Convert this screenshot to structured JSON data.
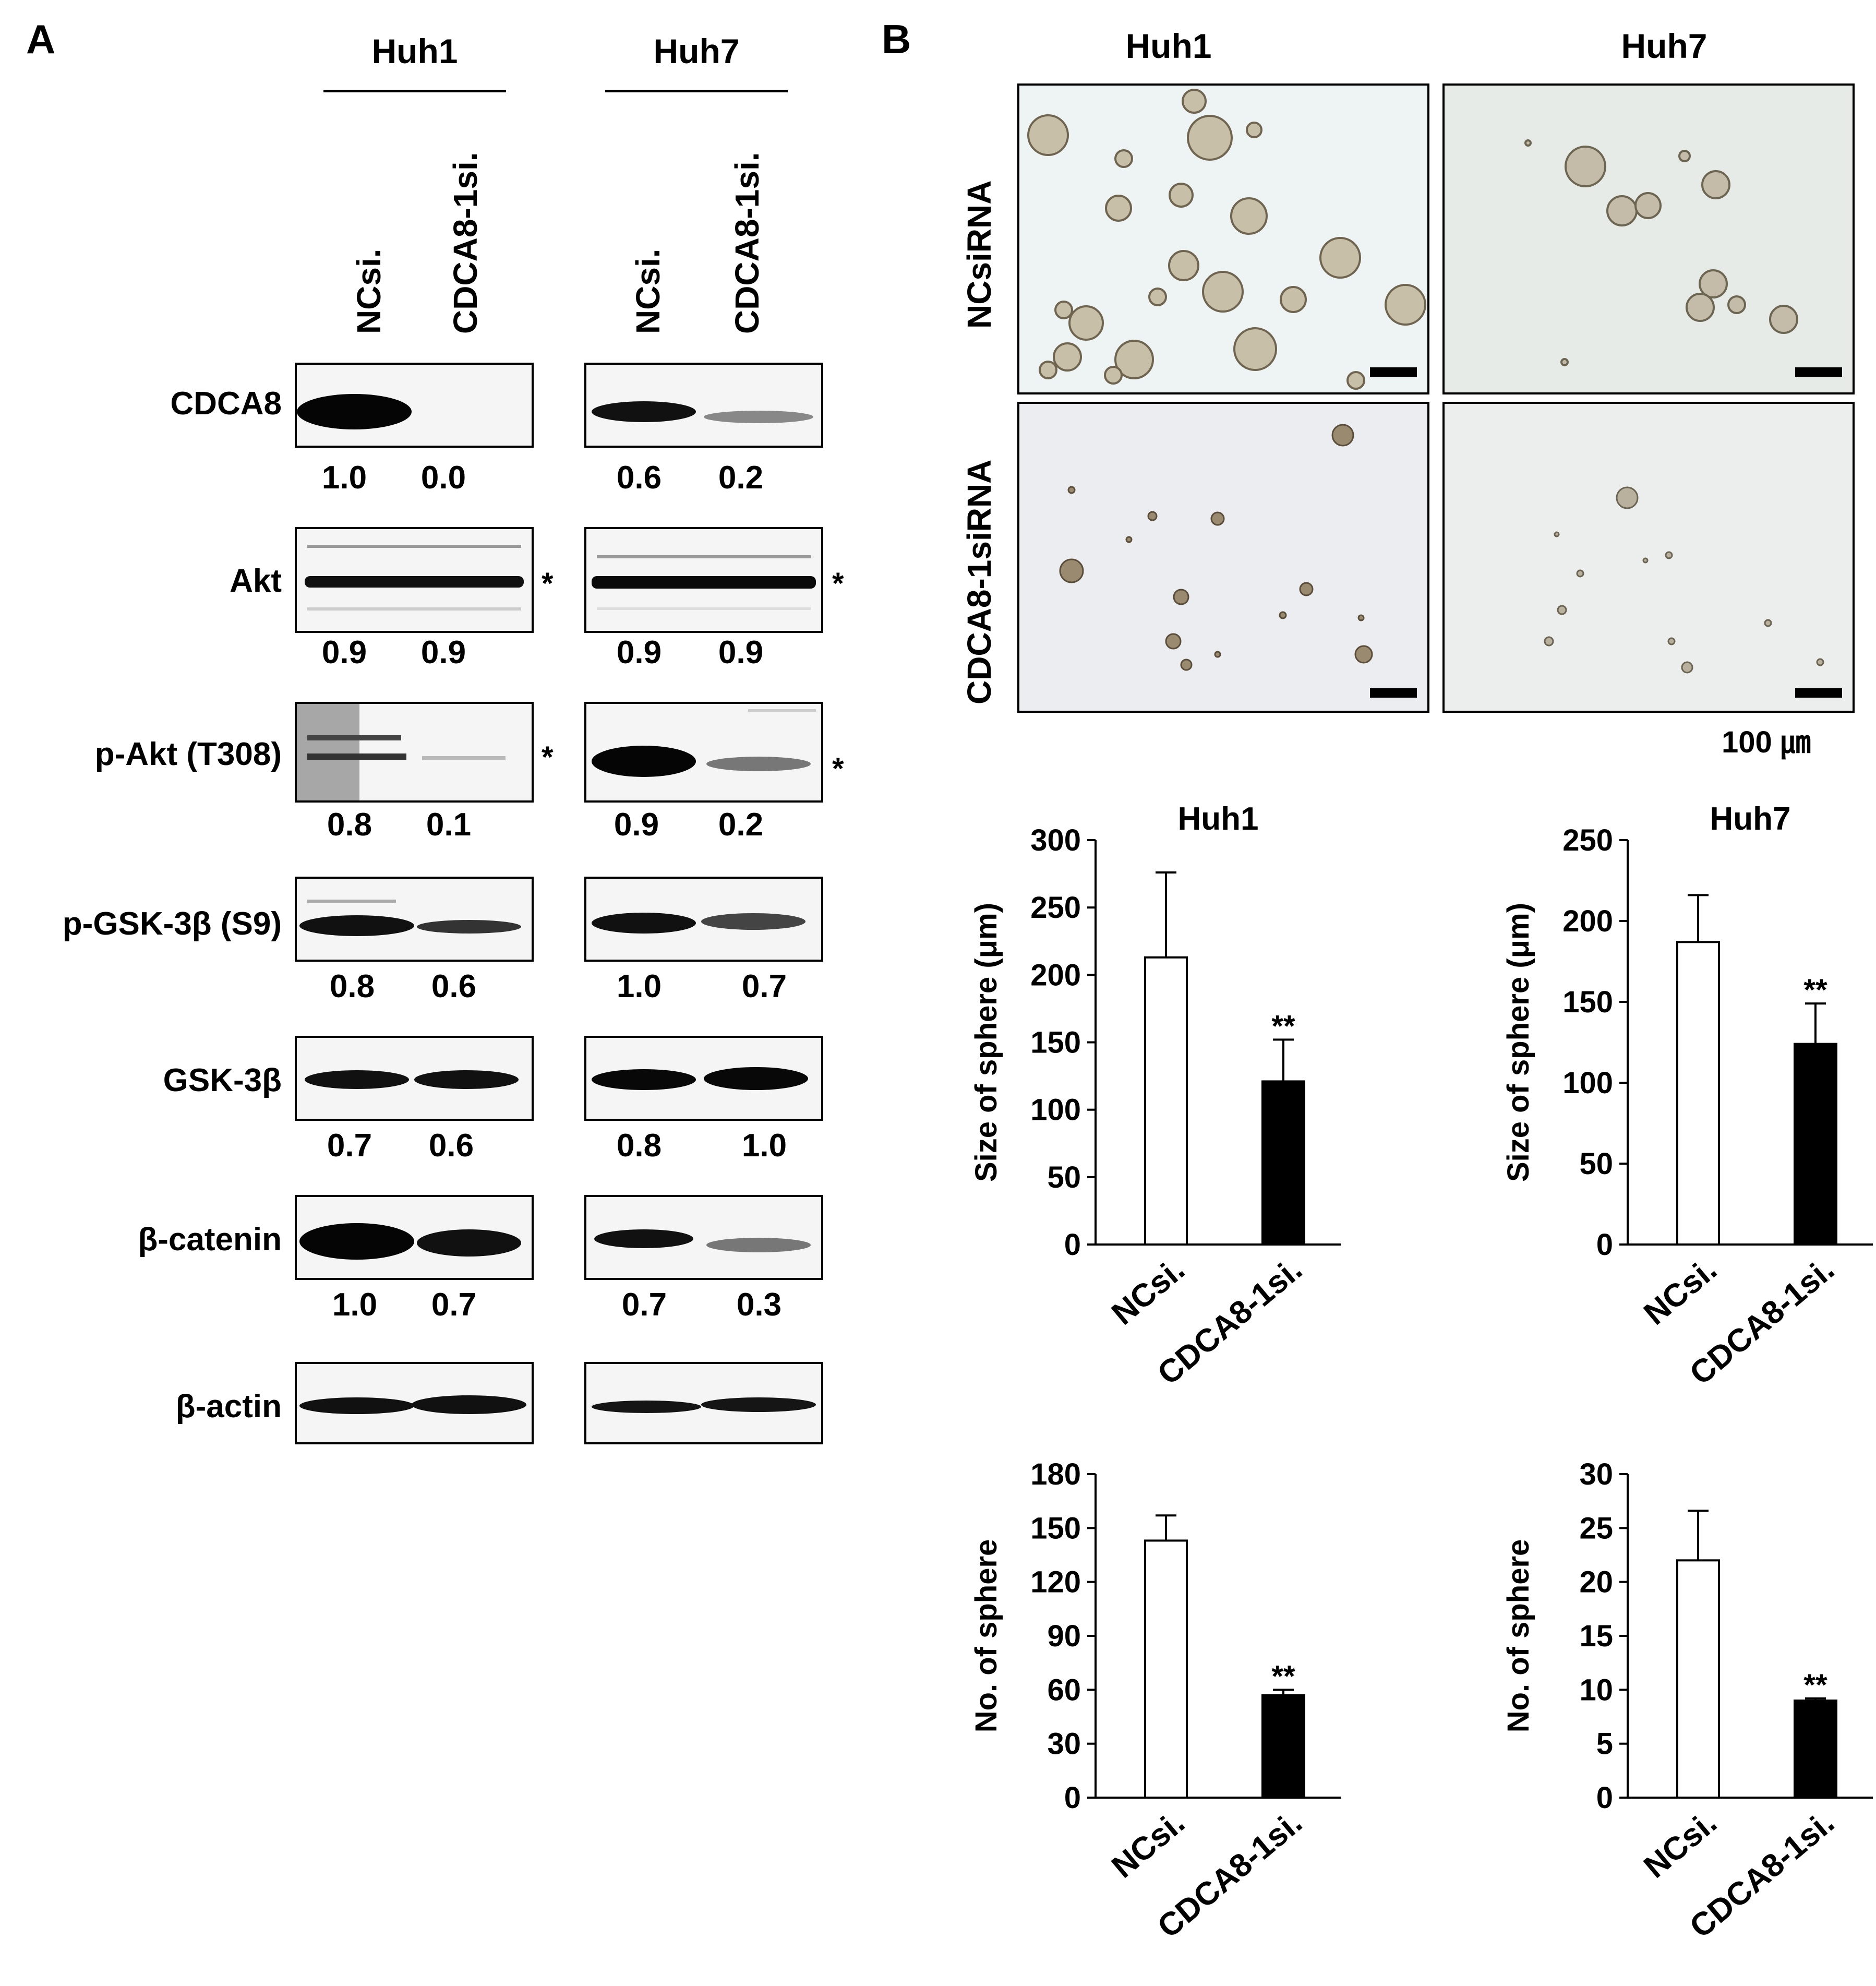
{
  "panel_a": {
    "letter": "A",
    "groups": [
      {
        "name": "Huh1",
        "lanes": [
          "NCsi.",
          "CDCA8-1si."
        ]
      },
      {
        "name": "Huh7",
        "lanes": [
          "NCsi.",
          "CDCA8-1si."
        ]
      }
    ],
    "rows": [
      {
        "label": "CDCA8",
        "huh1": [
          "1.0",
          "0.0"
        ],
        "huh7": [
          "0.6",
          "0.2"
        ],
        "star": ""
      },
      {
        "label": "Akt",
        "huh1": [
          "0.9",
          "0.9"
        ],
        "huh7": [
          "0.9",
          "0.9"
        ],
        "star": "*"
      },
      {
        "label": "p-Akt (T308)",
        "huh1": [
          "0.8",
          "0.1"
        ],
        "huh7": [
          "0.9",
          "0.2"
        ],
        "star": "*"
      },
      {
        "label": "p-GSK-3β (S9)",
        "huh1": [
          "0.8",
          "0.6"
        ],
        "huh7": [
          "1.0",
          "0.7"
        ],
        "star": ""
      },
      {
        "label": "GSK-3β",
        "huh1": [
          "0.7",
          "0.6"
        ],
        "huh7": [
          "0.8",
          "1.0"
        ],
        "star": ""
      },
      {
        "label": "β-catenin",
        "huh1": [
          "1.0",
          "0.7"
        ],
        "huh7": [
          "0.7",
          "0.3"
        ],
        "star": ""
      },
      {
        "label": "β-actin",
        "huh1": [
          "",
          ""
        ],
        "huh7": [
          "",
          ""
        ],
        "star": ""
      }
    ]
  },
  "panel_b": {
    "letter": "B",
    "col_headers": [
      "Huh1",
      "Huh7"
    ],
    "row_headers": [
      "NCsiRNA",
      "CDCA8-1siRNA"
    ],
    "scale_label": "100 ㎛",
    "colors": {
      "nc_bar": "#ffffff",
      "kd_bar": "#000000",
      "nc_bg": "#eef3f4",
      "kd_bg": "#ecedf0"
    }
  },
  "chart_data": [
    {
      "type": "bar",
      "title": "Huh1",
      "ylabel": "Size of sphere (μm)",
      "categories": [
        "NCsi.",
        "CDCA8-1si."
      ],
      "values": [
        213,
        121
      ],
      "errors": [
        63,
        31
      ],
      "significance": [
        "",
        "**"
      ],
      "ylim": [
        0,
        300
      ],
      "yticks": [
        "0",
        "50",
        "100",
        "150",
        "200",
        "250",
        "300"
      ]
    },
    {
      "type": "bar",
      "title": "Huh7",
      "ylabel": "Size of sphere (μm)",
      "categories": [
        "NCsi.",
        "CDCA8-1si."
      ],
      "values": [
        187,
        124
      ],
      "errors": [
        29,
        25
      ],
      "significance": [
        "",
        "**"
      ],
      "ylim": [
        0,
        250
      ],
      "yticks": [
        "0",
        "50",
        "100",
        "150",
        "200",
        "250"
      ]
    },
    {
      "type": "bar",
      "title": "",
      "ylabel": "No. of sphere",
      "categories": [
        "NCsi.",
        "CDCA8-1si."
      ],
      "values": [
        143,
        57
      ],
      "errors": [
        14,
        3
      ],
      "significance": [
        "",
        "**"
      ],
      "ylim": [
        0,
        180
      ],
      "yticks": [
        "0",
        "30",
        "60",
        "90",
        "120",
        "150",
        "180"
      ]
    },
    {
      "type": "bar",
      "title": "",
      "ylabel": "No. of sphere",
      "categories": [
        "NCsi.",
        "CDCA8-1si."
      ],
      "values": [
        22,
        9
      ],
      "errors": [
        4.6,
        0.2
      ],
      "significance": [
        "",
        "**"
      ],
      "ylim": [
        0,
        30
      ],
      "yticks": [
        "0",
        "5",
        "10",
        "15",
        "20",
        "25",
        "30"
      ]
    }
  ]
}
